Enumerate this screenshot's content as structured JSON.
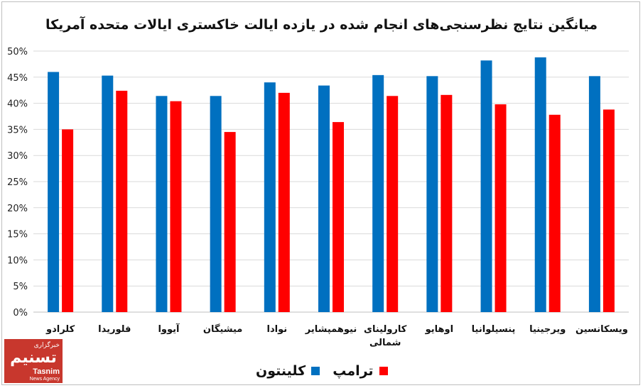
{
  "chart_data": {
    "type": "bar",
    "title": "میانگین نتایج نظرسنجی‌های انجام شده در یازده ایالت خاکستری ایالات متحده آمریکا",
    "categories": [
      "کلرادو",
      "فلوریدا",
      "آیووا",
      "میشیگان",
      "نوادا",
      "نیوهمپشایر",
      "کارولینای شمالی",
      "اوهایو",
      "پنسیلوانیا",
      "ویرجینیا",
      "ویسکانسین"
    ],
    "series": [
      {
        "name": "کلینتون",
        "color": "#0070c0",
        "values": [
          46.0,
          45.3,
          41.4,
          41.4,
          44.0,
          43.4,
          45.4,
          45.2,
          48.2,
          48.8,
          45.2
        ]
      },
      {
        "name": "ترامپ",
        "color": "#ff0000",
        "values": [
          35.0,
          42.4,
          40.4,
          34.5,
          42.0,
          36.4,
          41.4,
          41.6,
          39.8,
          37.8,
          38.8
        ]
      }
    ],
    "yticks": [
      "0%",
      "5%",
      "10%",
      "15%",
      "20%",
      "25%",
      "30%",
      "35%",
      "40%",
      "45%",
      "50%"
    ],
    "ylim": [
      0,
      50
    ],
    "grid": true,
    "legend_position": "bottom"
  },
  "logo": {
    "mark": "تسنیم",
    "subtitle": "خبرگزاری",
    "name_en": "Tasnim",
    "agency_en": "News Agency"
  }
}
